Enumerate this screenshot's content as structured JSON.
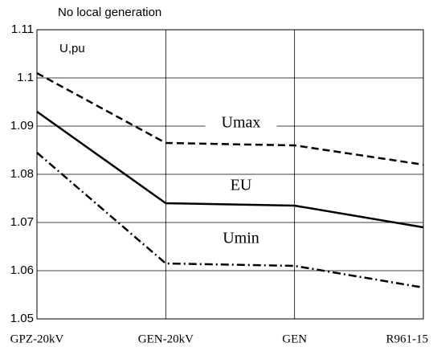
{
  "chart_data": {
    "type": "line",
    "title": "No local generation",
    "ylabel": "U,pu",
    "categories": [
      "GPZ-20kV",
      "GEN-20kV",
      "GEN",
      "R961-15"
    ],
    "series": [
      {
        "name": "Umax",
        "color": "#000000",
        "style": "dashed",
        "values": [
          1.101,
          1.0865,
          1.086,
          1.082
        ]
      },
      {
        "name": "EU",
        "color": "#000000",
        "style": "solid",
        "values": [
          1.093,
          1.074,
          1.0735,
          1.069
        ]
      },
      {
        "name": "Umin",
        "color": "#000000",
        "style": "dashdot",
        "values": [
          1.0845,
          1.0615,
          1.061,
          1.0565
        ]
      }
    ],
    "ylim": [
      1.05,
      1.11
    ],
    "yticks": [
      1.05,
      1.06,
      1.07,
      1.08,
      1.09,
      1.1,
      1.11
    ],
    "grid": true
  }
}
